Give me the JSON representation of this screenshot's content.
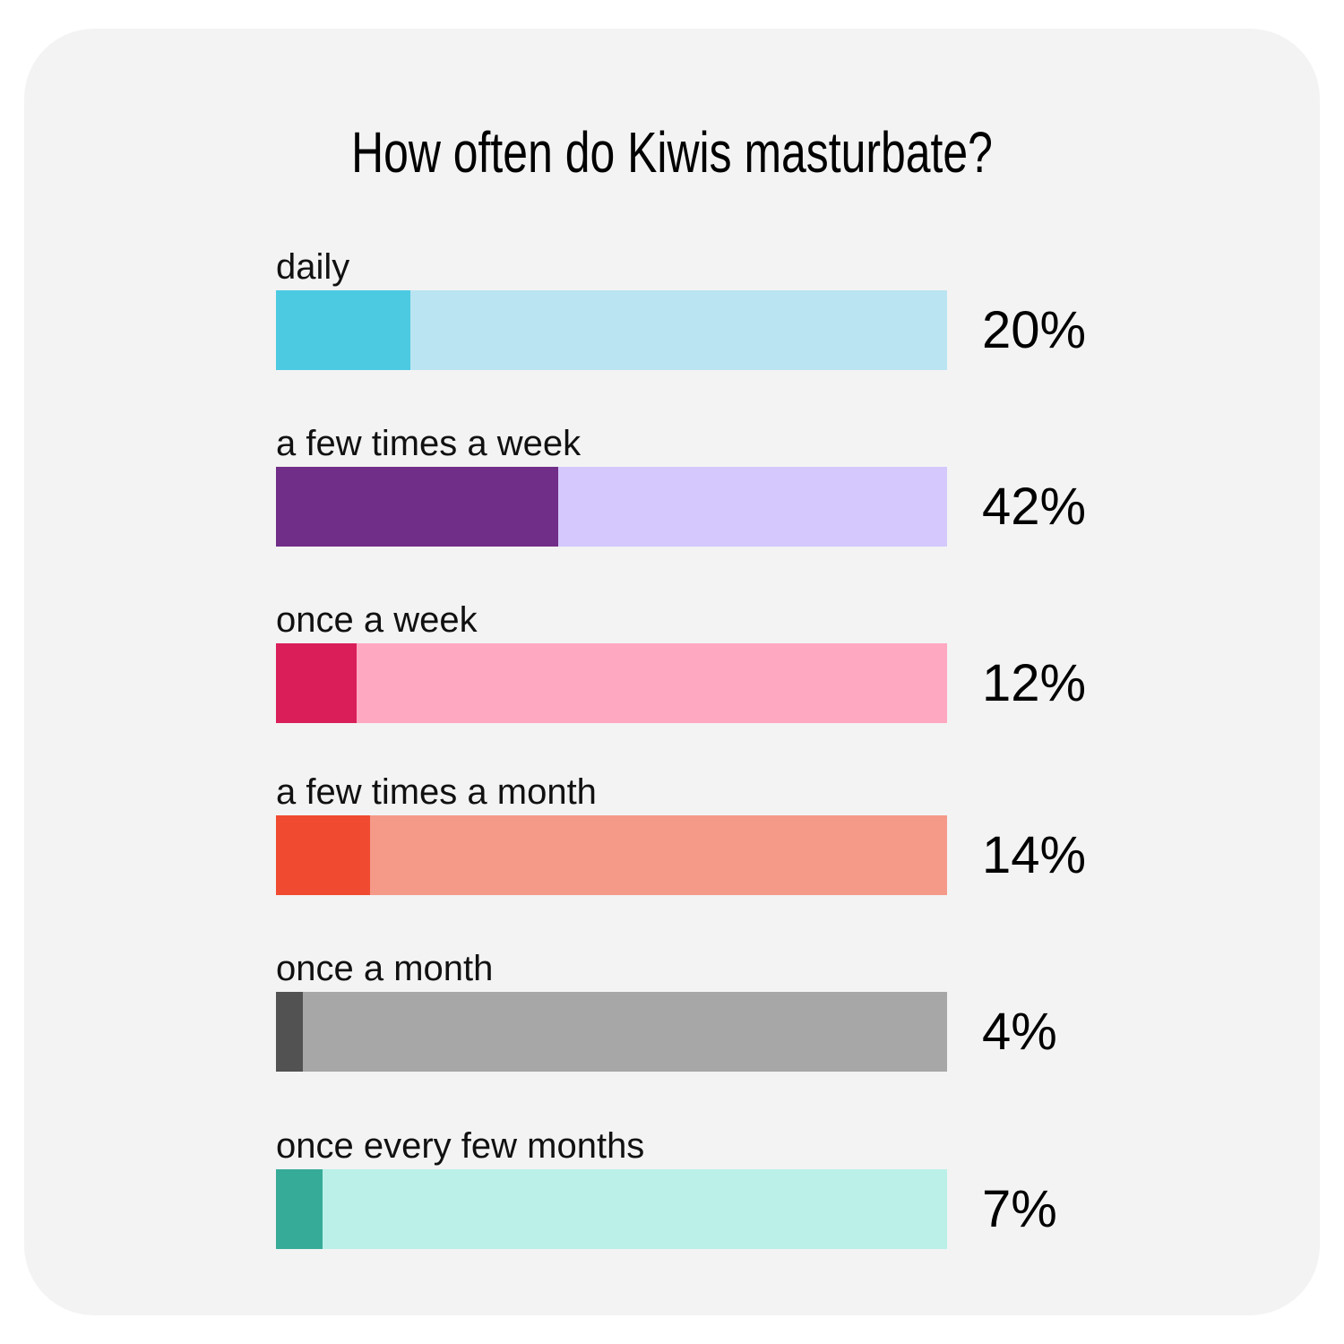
{
  "chart_data": {
    "type": "bar",
    "title": "How often do Kiwis masturbate?",
    "orientation": "horizontal",
    "xlim": [
      0,
      100
    ],
    "unit": "%",
    "categories": [
      "daily",
      "a few times a week",
      "once a week",
      "a few times a month",
      "once a month",
      "once every few months"
    ],
    "values": [
      20,
      42,
      12,
      14,
      4,
      7
    ],
    "value_labels": [
      "20%",
      "42%",
      "12%",
      "14%",
      "4%",
      "7%"
    ],
    "colors": [
      "#4bcae2",
      "#712e88",
      "#da1e5a",
      "#f04a30",
      "#525252",
      "#36ab98"
    ],
    "track_colors": [
      "#bae4f1",
      "#d4c8fd",
      "#ffa8c2",
      "#f59a89",
      "#a7a7a7",
      "#baf0e8"
    ]
  }
}
